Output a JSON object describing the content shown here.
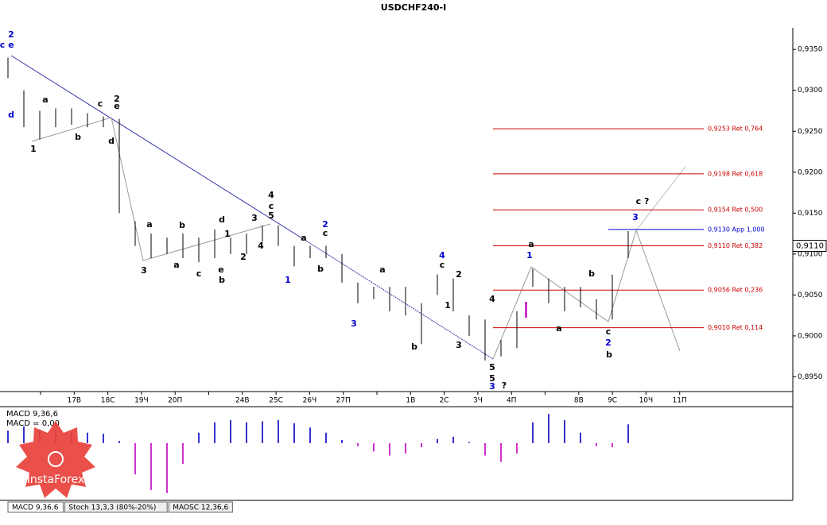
{
  "chart_data": {
    "type": "ohlc",
    "title": "USDCHF240-I",
    "ylim": [
      0.8932,
      0.9389
    ],
    "yticks": [
      {
        "value": 0.895,
        "label": "0,8950"
      },
      {
        "value": 0.9,
        "label": "0,9000"
      },
      {
        "value": 0.905,
        "label": "0,9050"
      },
      {
        "value": 0.91,
        "label": "0,9100"
      },
      {
        "value": 0.915,
        "label": "0,9150"
      },
      {
        "value": 0.92,
        "label": "0,9200"
      },
      {
        "value": 0.925,
        "label": "0,9250"
      },
      {
        "value": 0.93,
        "label": "0,9300"
      },
      {
        "value": 0.935,
        "label": "0,9350"
      }
    ],
    "categories": [
      null,
      "17В",
      "18С",
      "19Ч",
      "20П",
      null,
      "24В",
      "25С",
      "26Ч",
      "27П",
      null,
      "1В",
      "2С",
      "3Ч",
      "4П",
      null,
      "8В",
      "9С",
      "10Ч",
      "11П"
    ],
    "bar_color": "#000000",
    "high": [
      0.934,
      0.93,
      0.9275,
      0.9278,
      0.9278,
      0.9272,
      0.9268,
      0.9265,
      0.914,
      0.9125,
      0.912,
      0.9125,
      0.912,
      0.913,
      0.912,
      0.9125,
      0.9135,
      0.9135,
      0.911,
      0.911,
      0.911,
      0.91,
      0.9065,
      0.906,
      0.906,
      0.906,
      0.904,
      0.9075,
      0.907,
      0.9025,
      0.902,
      0.8995,
      0.903,
      0.9082,
      0.907,
      0.906,
      0.906,
      0.9045,
      0.9075,
      0.9128
    ],
    "low": [
      0.9315,
      0.9255,
      0.924,
      0.9255,
      0.9258,
      0.9255,
      0.9255,
      0.915,
      0.911,
      0.9095,
      0.91,
      0.9095,
      0.909,
      0.9095,
      0.91,
      0.91,
      0.9115,
      0.911,
      0.9085,
      0.9095,
      0.9095,
      0.9065,
      0.904,
      0.9045,
      0.903,
      0.9025,
      0.899,
      0.905,
      0.903,
      0.9,
      0.897,
      0.8975,
      0.8985,
      0.906,
      0.904,
      0.903,
      0.9035,
      0.902,
      0.902,
      0.9095
    ],
    "levels": [
      {
        "value": 0.9253,
        "label": "0,9253 Ret 0,764",
        "color": "#cc0000"
      },
      {
        "value": 0.9198,
        "label": "0,9198 Ret 0,618",
        "color": "#cc0000"
      },
      {
        "value": 0.9154,
        "label": "0,9154 Ret 0,500",
        "color": "#cc0000"
      },
      {
        "value": 0.913,
        "label": "0,9130 App 1,000",
        "color": "#0000cc"
      },
      {
        "value": 0.911,
        "label": "0,9110 Ret 0,382",
        "color": "#cc0000"
      },
      {
        "value": 0.9056,
        "label": "0,9056 Ret 0,236",
        "color": "#cc0000"
      },
      {
        "value": 0.901,
        "label": "0,9010 Ret 0,114",
        "color": "#cc0000"
      }
    ],
    "last_price": {
      "value": 0.911,
      "label": "0,9110"
    },
    "annotations": [
      {
        "text": "c",
        "color": "#0000cc"
      },
      {
        "text": "2",
        "color": "#0000cc"
      },
      {
        "text": "e",
        "color": "#0000cc"
      },
      {
        "text": "d",
        "color": "#0000cc"
      },
      {
        "text": "a",
        "color": "#000000"
      },
      {
        "text": "1",
        "color": "#000000"
      },
      {
        "text": "b",
        "color": "#000000"
      },
      {
        "text": "c",
        "color": "#000000"
      },
      {
        "text": "2",
        "color": "#000000"
      },
      {
        "text": "e",
        "color": "#000000"
      },
      {
        "text": "d",
        "color": "#000000"
      },
      {
        "text": "a",
        "color": "#000000"
      },
      {
        "text": "3",
        "color": "#000000"
      },
      {
        "text": "b",
        "color": "#000000"
      },
      {
        "text": "a",
        "color": "#000000"
      },
      {
        "text": "c",
        "color": "#000000"
      },
      {
        "text": "d",
        "color": "#000000"
      },
      {
        "text": "e",
        "color": "#000000"
      },
      {
        "text": "b",
        "color": "#000000"
      },
      {
        "text": "1",
        "color": "#000000"
      },
      {
        "text": "2",
        "color": "#000000"
      },
      {
        "text": "3",
        "color": "#000000"
      },
      {
        "text": "4",
        "color": "#000000"
      },
      {
        "text": "4",
        "color": "#000000"
      },
      {
        "text": "c",
        "color": "#000000"
      },
      {
        "text": "5",
        "color": "#000000"
      },
      {
        "text": "2",
        "color": "#0000cc"
      },
      {
        "text": "c",
        "color": "#000000"
      },
      {
        "text": "a",
        "color": "#000000"
      },
      {
        "text": "1",
        "color": "#0000cc"
      },
      {
        "text": "b",
        "color": "#000000"
      },
      {
        "text": "3",
        "color": "#0000cc"
      },
      {
        "text": "a",
        "color": "#000000"
      },
      {
        "text": "b",
        "color": "#000000"
      },
      {
        "text": "4",
        "color": "#0000cc"
      },
      {
        "text": "c",
        "color": "#000000"
      },
      {
        "text": "2",
        "color": "#000000"
      },
      {
        "text": "1",
        "color": "#000000"
      },
      {
        "text": "3",
        "color": "#000000"
      },
      {
        "text": "4",
        "color": "#000000"
      },
      {
        "text": "5",
        "color": "#000000"
      },
      {
        "text": "5",
        "color": "#000000"
      },
      {
        "text": "3",
        "color": "#0000cc"
      },
      {
        "text": "?",
        "color": "#000000"
      },
      {
        "text": "a",
        "color": "#000000"
      },
      {
        "text": "1",
        "color": "#0000cc"
      },
      {
        "text": "a",
        "color": "#000000"
      },
      {
        "text": "b",
        "color": "#000000"
      },
      {
        "text": "c",
        "color": "#000000"
      },
      {
        "text": "2",
        "color": "#0000cc"
      },
      {
        "text": "b",
        "color": "#000000"
      },
      {
        "text": "3",
        "color": "#0000cc"
      },
      {
        "text": "c ?",
        "color": "#000000"
      }
    ],
    "macd": {
      "title": "MACD 9,36,6",
      "readout": "MACD = 0,00",
      "ylim": [
        -0.0055,
        0.0035
      ],
      "positive_color": "#3333cc",
      "negative_color": "#cc33cc",
      "values": [
        0.0012,
        0.0016,
        0.0013,
        0.0012,
        0.0011,
        0.001,
        0.0009,
        0.0002,
        -0.003,
        -0.0045,
        -0.0048,
        -0.002,
        0.001,
        0.002,
        0.0022,
        0.002,
        0.0021,
        0.0022,
        0.0019,
        0.0015,
        0.001,
        0.0003,
        -0.0003,
        -0.0008,
        -0.0012,
        -0.001,
        -0.0004,
        0.0004,
        0.0006,
        0.0001,
        -0.0012,
        -0.0018,
        -0.001,
        0.002,
        0.0028,
        0.0022,
        0.001,
        -0.0003,
        -0.0004,
        0.0018
      ]
    },
    "tabs": [
      "MACD 9,36,6",
      "Stoch 13,3,3 (80%-20%)",
      "MAOSC 12,36,6"
    ],
    "watermark": "InstaForex"
  }
}
